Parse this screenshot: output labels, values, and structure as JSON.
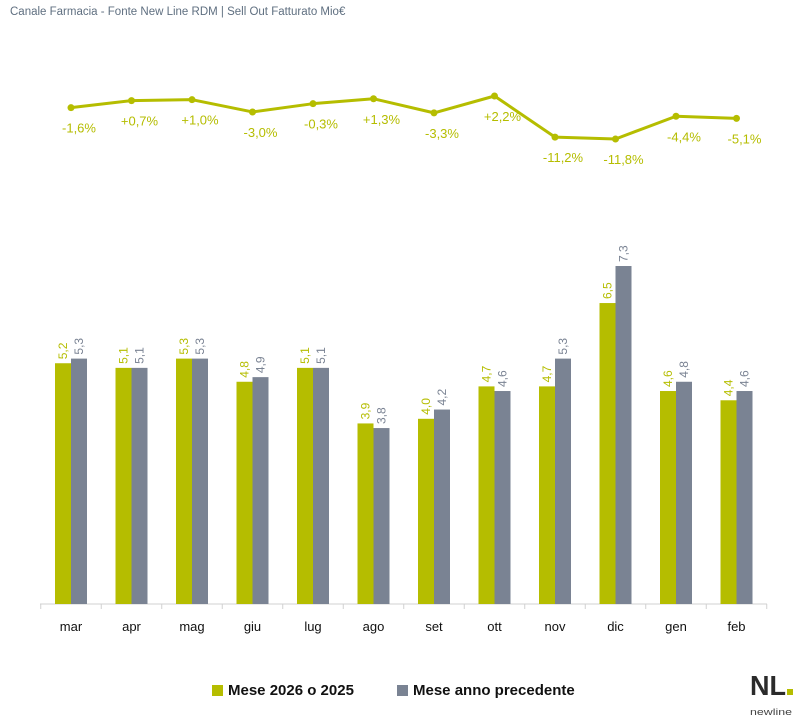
{
  "title": "Canale Farmacia - Fonte New Line RDM | Sell Out Fatturato Mio€",
  "chart_data": [
    {
      "type": "line",
      "categories": [
        "mar",
        "apr",
        "mag",
        "giu",
        "lug",
        "ago",
        "set",
        "ott",
        "nov",
        "dic",
        "gen",
        "feb"
      ],
      "values": [
        -1.6,
        0.7,
        1.0,
        -3.0,
        -0.3,
        1.3,
        -3.3,
        2.2,
        -11.2,
        -11.8,
        -4.4,
        -5.1
      ],
      "labels": [
        "-1,6%",
        "+0,7%",
        "+1,0%",
        "-3,0%",
        "-0,3%",
        "+1,3%",
        "-3,3%",
        "+2,2%",
        "-11,2%",
        "-11,8%",
        "-4,4%",
        "-5,1%"
      ],
      "color": "#b5bd00"
    },
    {
      "type": "bar",
      "categories": [
        "mar",
        "apr",
        "mag",
        "giu",
        "lug",
        "ago",
        "set",
        "ott",
        "nov",
        "dic",
        "gen",
        "feb"
      ],
      "series": [
        {
          "name": "Mese 2026 o 2025",
          "values": [
            5.2,
            5.1,
            5.3,
            4.8,
            5.1,
            3.9,
            4.0,
            4.7,
            4.7,
            6.5,
            4.6,
            4.4
          ],
          "labels": [
            "5,2",
            "5,1",
            "5,3",
            "4,8",
            "5,1",
            "3,9",
            "4,0",
            "4,7",
            "4,7",
            "6,5",
            "4,6",
            "4,4"
          ],
          "color": "#b5bd00"
        },
        {
          "name": "Mese anno precedente",
          "values": [
            5.3,
            5.1,
            5.3,
            4.9,
            5.1,
            3.8,
            4.2,
            4.6,
            5.3,
            7.3,
            4.8,
            4.6
          ],
          "labels": [
            "5,3",
            "5,1",
            "5,3",
            "4,9",
            "5,1",
            "3,8",
            "4,2",
            "4,6",
            "5,3",
            "7,3",
            "4,8",
            "4,6"
          ],
          "color": "#7a8393"
        }
      ],
      "legend": "bottom"
    }
  ],
  "logo": {
    "text_main": "NL",
    "text_sub": "newline"
  }
}
